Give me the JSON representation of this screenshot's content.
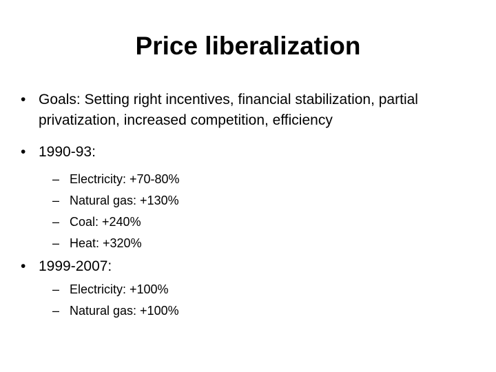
{
  "slide": {
    "title": "Price liberalization",
    "bullets": [
      {
        "marker": "•",
        "text": "Goals: Setting right incentives, financial stabilization, partial privatization, increased competition, efficiency",
        "sub": []
      },
      {
        "marker": "•",
        "text": "1990-93:",
        "sub": [
          {
            "marker": "–",
            "text": "Electricity: +70-80%"
          },
          {
            "marker": "–",
            "text": "Natural gas: +130%"
          },
          {
            "marker": "–",
            "text": "Coal: +240%"
          },
          {
            "marker": "–",
            "text": "Heat: +320%"
          }
        ]
      },
      {
        "marker": "•",
        "text": "1999-2007:",
        "sub": [
          {
            "marker": "–",
            "text": "Electricity: +100%"
          },
          {
            "marker": "–",
            "text": "Natural gas: +100%"
          }
        ]
      }
    ]
  }
}
